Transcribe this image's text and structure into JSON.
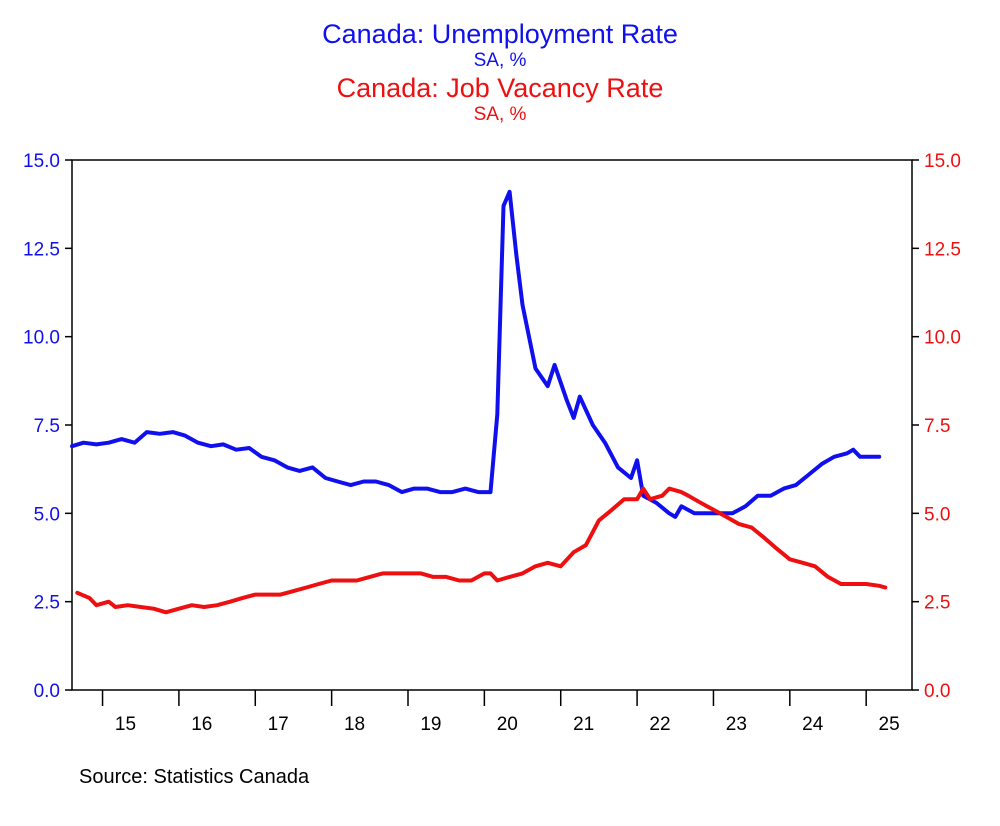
{
  "chart_data": {
    "type": "line",
    "titles": [
      {
        "title": "Canada: Unemployment Rate",
        "subtitle": "SA, %",
        "color": "#1010ee"
      },
      {
        "title": "Canada: Job Vacancy Rate",
        "subtitle": "SA, %",
        "color": "#ee1010"
      }
    ],
    "left_axis": {
      "ticks": [
        "15.0",
        "12.5",
        "10.0",
        "7.5",
        "5.0",
        "2.5",
        "0.0"
      ],
      "ylim": [
        0,
        15
      ],
      "color": "#1010ee"
    },
    "right_axis": {
      "ticks": [
        "15.0",
        "12.5",
        "10.0",
        "7.5",
        "5.0",
        "2.5",
        "0.0"
      ],
      "ylim": [
        0,
        15
      ],
      "color": "#ee1010"
    },
    "x_axis": {
      "tick_labels": [
        "15",
        "16",
        "17",
        "18",
        "19",
        "20",
        "21",
        "22",
        "23",
        "24",
        "25"
      ],
      "xlim": [
        2014.6,
        2025.6
      ]
    },
    "series": [
      {
        "name": "Canada: Unemployment Rate",
        "axis": "left",
        "color": "#1010ee",
        "points": [
          [
            2014.6,
            6.9
          ],
          [
            2014.75,
            7.0
          ],
          [
            2014.92,
            6.95
          ],
          [
            2015.08,
            7.0
          ],
          [
            2015.25,
            7.1
          ],
          [
            2015.42,
            7.0
          ],
          [
            2015.58,
            7.3
          ],
          [
            2015.75,
            7.25
          ],
          [
            2015.92,
            7.3
          ],
          [
            2016.08,
            7.2
          ],
          [
            2016.25,
            7.0
          ],
          [
            2016.42,
            6.9
          ],
          [
            2016.58,
            6.95
          ],
          [
            2016.75,
            6.8
          ],
          [
            2016.92,
            6.85
          ],
          [
            2017.08,
            6.6
          ],
          [
            2017.25,
            6.5
          ],
          [
            2017.42,
            6.3
          ],
          [
            2017.58,
            6.2
          ],
          [
            2017.75,
            6.3
          ],
          [
            2017.92,
            6.0
          ],
          [
            2018.08,
            5.9
          ],
          [
            2018.25,
            5.8
          ],
          [
            2018.42,
            5.9
          ],
          [
            2018.58,
            5.9
          ],
          [
            2018.75,
            5.8
          ],
          [
            2018.92,
            5.6
          ],
          [
            2019.08,
            5.7
          ],
          [
            2019.25,
            5.7
          ],
          [
            2019.42,
            5.6
          ],
          [
            2019.58,
            5.6
          ],
          [
            2019.75,
            5.7
          ],
          [
            2019.92,
            5.6
          ],
          [
            2020.0,
            5.6
          ],
          [
            2020.08,
            5.6
          ],
          [
            2020.17,
            7.8
          ],
          [
            2020.25,
            13.7
          ],
          [
            2020.33,
            14.1
          ],
          [
            2020.42,
            12.3
          ],
          [
            2020.5,
            10.9
          ],
          [
            2020.67,
            9.1
          ],
          [
            2020.83,
            8.6
          ],
          [
            2020.92,
            9.2
          ],
          [
            2021.08,
            8.2
          ],
          [
            2021.17,
            7.7
          ],
          [
            2021.25,
            8.3
          ],
          [
            2021.42,
            7.5
          ],
          [
            2021.58,
            7.0
          ],
          [
            2021.75,
            6.3
          ],
          [
            2021.92,
            6.0
          ],
          [
            2022.0,
            6.5
          ],
          [
            2022.08,
            5.5
          ],
          [
            2022.25,
            5.3
          ],
          [
            2022.42,
            5.0
          ],
          [
            2022.5,
            4.9
          ],
          [
            2022.58,
            5.2
          ],
          [
            2022.75,
            5.0
          ],
          [
            2022.92,
            5.0
          ],
          [
            2023.08,
            5.0
          ],
          [
            2023.25,
            5.0
          ],
          [
            2023.42,
            5.2
          ],
          [
            2023.58,
            5.5
          ],
          [
            2023.75,
            5.5
          ],
          [
            2023.92,
            5.7
          ],
          [
            2024.08,
            5.8
          ],
          [
            2024.25,
            6.1
          ],
          [
            2024.42,
            6.4
          ],
          [
            2024.58,
            6.6
          ],
          [
            2024.75,
            6.7
          ],
          [
            2024.83,
            6.8
          ],
          [
            2024.92,
            6.6
          ],
          [
            2025.08,
            6.6
          ],
          [
            2025.17,
            6.6
          ]
        ]
      },
      {
        "name": "Canada: Job Vacancy Rate",
        "axis": "right",
        "color": "#ee1010",
        "points": [
          [
            2014.67,
            2.75
          ],
          [
            2014.83,
            2.6
          ],
          [
            2014.92,
            2.4
          ],
          [
            2015.08,
            2.5
          ],
          [
            2015.17,
            2.35
          ],
          [
            2015.33,
            2.4
          ],
          [
            2015.5,
            2.35
          ],
          [
            2015.67,
            2.3
          ],
          [
            2015.83,
            2.2
          ],
          [
            2016.0,
            2.3
          ],
          [
            2016.17,
            2.4
          ],
          [
            2016.33,
            2.35
          ],
          [
            2016.5,
            2.4
          ],
          [
            2016.67,
            2.5
          ],
          [
            2016.83,
            2.6
          ],
          [
            2017.0,
            2.7
          ],
          [
            2017.17,
            2.7
          ],
          [
            2017.33,
            2.7
          ],
          [
            2017.5,
            2.8
          ],
          [
            2017.67,
            2.9
          ],
          [
            2017.83,
            3.0
          ],
          [
            2018.0,
            3.1
          ],
          [
            2018.17,
            3.1
          ],
          [
            2018.33,
            3.1
          ],
          [
            2018.5,
            3.2
          ],
          [
            2018.67,
            3.3
          ],
          [
            2018.83,
            3.3
          ],
          [
            2019.0,
            3.3
          ],
          [
            2019.17,
            3.3
          ],
          [
            2019.33,
            3.2
          ],
          [
            2019.5,
            3.2
          ],
          [
            2019.67,
            3.1
          ],
          [
            2019.83,
            3.1
          ],
          [
            2020.0,
            3.3
          ],
          [
            2020.08,
            3.3
          ],
          [
            2020.17,
            3.1
          ],
          [
            2020.33,
            3.2
          ],
          [
            2020.5,
            3.3
          ],
          [
            2020.67,
            3.5
          ],
          [
            2020.83,
            3.6
          ],
          [
            2021.0,
            3.5
          ],
          [
            2021.17,
            3.9
          ],
          [
            2021.33,
            4.1
          ],
          [
            2021.5,
            4.8
          ],
          [
            2021.67,
            5.1
          ],
          [
            2021.83,
            5.4
          ],
          [
            2022.0,
            5.4
          ],
          [
            2022.08,
            5.7
          ],
          [
            2022.17,
            5.4
          ],
          [
            2022.33,
            5.5
          ],
          [
            2022.42,
            5.7
          ],
          [
            2022.58,
            5.6
          ],
          [
            2022.67,
            5.5
          ],
          [
            2022.83,
            5.3
          ],
          [
            2023.0,
            5.1
          ],
          [
            2023.17,
            4.9
          ],
          [
            2023.33,
            4.7
          ],
          [
            2023.5,
            4.6
          ],
          [
            2023.67,
            4.3
          ],
          [
            2023.83,
            4.0
          ],
          [
            2024.0,
            3.7
          ],
          [
            2024.17,
            3.6
          ],
          [
            2024.33,
            3.5
          ],
          [
            2024.5,
            3.2
          ],
          [
            2024.67,
            3.0
          ],
          [
            2024.83,
            3.0
          ],
          [
            2025.0,
            3.0
          ],
          [
            2025.17,
            2.95
          ],
          [
            2025.25,
            2.9
          ]
        ]
      }
    ],
    "grid": false,
    "legend": "none",
    "source": "Source:  Statistics Canada"
  }
}
